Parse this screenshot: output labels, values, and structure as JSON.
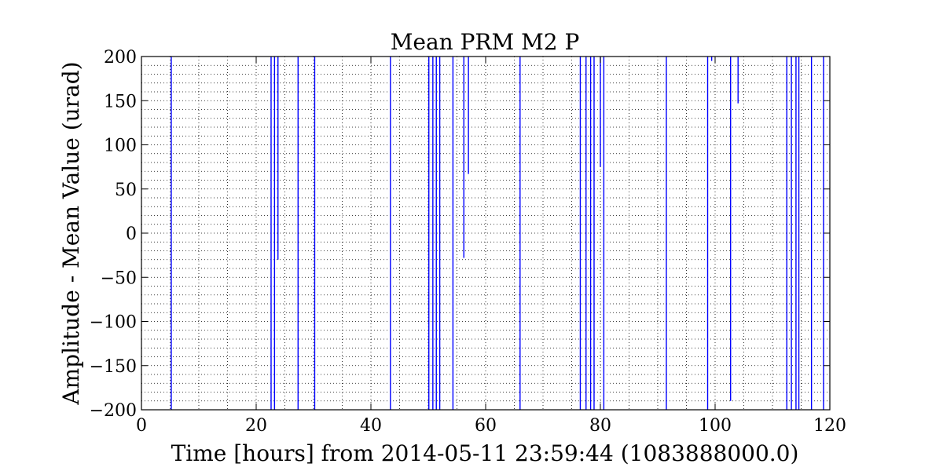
{
  "chart_data": {
    "type": "line",
    "title": "Mean PRM M2 P",
    "xlabel": "Time [hours] from 2014-05-11 23:59:44 (1083888000.0)",
    "ylabel": "Amplitude - Mean Value (urad)",
    "xlim": [
      0,
      120
    ],
    "ylim": [
      -200,
      200
    ],
    "grid": true,
    "minor_grid": true,
    "x_ticks": [
      0,
      20,
      40,
      60,
      80,
      100,
      120
    ],
    "x_tick_labels": [
      "0",
      "20",
      "40",
      "60",
      "80",
      "100",
      "120"
    ],
    "y_ticks": [
      200,
      150,
      100,
      50,
      0,
      -50,
      -100,
      -150,
      -200
    ],
    "y_tick_labels": [
      "200",
      "150",
      "100",
      "50",
      "0",
      "−50",
      "−100",
      "−150",
      "−200"
    ],
    "series": [
      {
        "color": "#0000ff",
        "spikes": [
          {
            "x": 5.2,
            "from": 200,
            "to": -200
          },
          {
            "x": 22.6,
            "from": 200,
            "to": -200
          },
          {
            "x": 23.2,
            "from": 200,
            "to": -200
          },
          {
            "x": 23.8,
            "from": 200,
            "to": -30
          },
          {
            "x": 27.3,
            "from": 200,
            "to": -200
          },
          {
            "x": 30.2,
            "from": 200,
            "to": -200
          },
          {
            "x": 43.4,
            "from": 200,
            "to": -200
          },
          {
            "x": 50.1,
            "from": 200,
            "to": -200
          },
          {
            "x": 50.8,
            "from": 200,
            "to": -200
          },
          {
            "x": 51.4,
            "from": 200,
            "to": -200
          },
          {
            "x": 52.0,
            "from": 200,
            "to": -200
          },
          {
            "x": 54.3,
            "from": 200,
            "to": -200
          },
          {
            "x": 56.2,
            "from": 200,
            "to": -28
          },
          {
            "x": 57.0,
            "from": 200,
            "to": 67
          },
          {
            "x": 66.0,
            "from": 200,
            "to": -200
          },
          {
            "x": 76.5,
            "from": 200,
            "to": -200
          },
          {
            "x": 77.5,
            "from": 200,
            "to": -200
          },
          {
            "x": 78.3,
            "from": 200,
            "to": -200
          },
          {
            "x": 78.9,
            "from": 200,
            "to": -200
          },
          {
            "x": 80.0,
            "from": 200,
            "to": 75
          },
          {
            "x": 80.6,
            "from": 200,
            "to": -200
          },
          {
            "x": 91.5,
            "from": 200,
            "to": -200
          },
          {
            "x": 98.7,
            "from": 200,
            "to": -200
          },
          {
            "x": 99.4,
            "from": 200,
            "to": 195
          },
          {
            "x": 102.7,
            "from": 200,
            "to": -190
          },
          {
            "x": 104.0,
            "from": 200,
            "to": 147
          },
          {
            "x": 112.5,
            "from": 200,
            "to": -200
          },
          {
            "x": 113.3,
            "from": 200,
            "to": -200
          },
          {
            "x": 114.1,
            "from": 200,
            "to": -200
          },
          {
            "x": 114.6,
            "from": 200,
            "to": -200
          },
          {
            "x": 116.8,
            "from": 200,
            "to": -200
          },
          {
            "x": 118.9,
            "from": 200,
            "to": -200
          }
        ]
      }
    ]
  }
}
